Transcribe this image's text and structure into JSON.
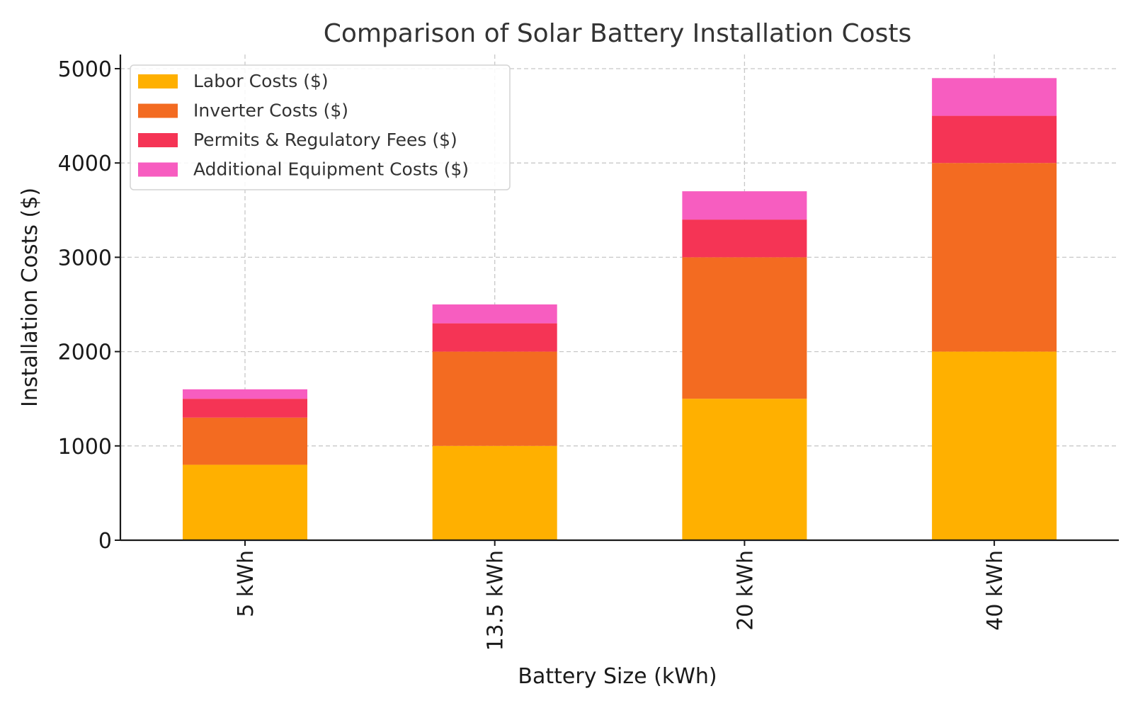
{
  "chart_data": {
    "type": "bar",
    "stacked": true,
    "title": "Comparison of Solar Battery Installation Costs",
    "xlabel": "Battery Size (kWh)",
    "ylabel": "Installation Costs ($)",
    "categories": [
      "5 kWh",
      "13.5 kWh",
      "20 kWh",
      "40 kWh"
    ],
    "series": [
      {
        "name": "Labor Costs ($)",
        "color": "#FFB000",
        "values": [
          800,
          1000,
          1500,
          2000
        ]
      },
      {
        "name": "Inverter Costs ($)",
        "color": "#F36B21",
        "values": [
          500,
          1000,
          1500,
          2000
        ]
      },
      {
        "name": "Permits & Regulatory Fees ($)",
        "color": "#F53455",
        "values": [
          200,
          300,
          400,
          500
        ]
      },
      {
        "name": "Additional Equipment Costs ($)",
        "color": "#F75DC0",
        "values": [
          100,
          200,
          300,
          400
        ]
      }
    ],
    "ylim": [
      0,
      5150
    ],
    "yticks": [
      0,
      1000,
      2000,
      3000,
      4000,
      5000
    ],
    "grid": true,
    "legend_position": "top-left",
    "x_tick_rotation": "vertical"
  }
}
